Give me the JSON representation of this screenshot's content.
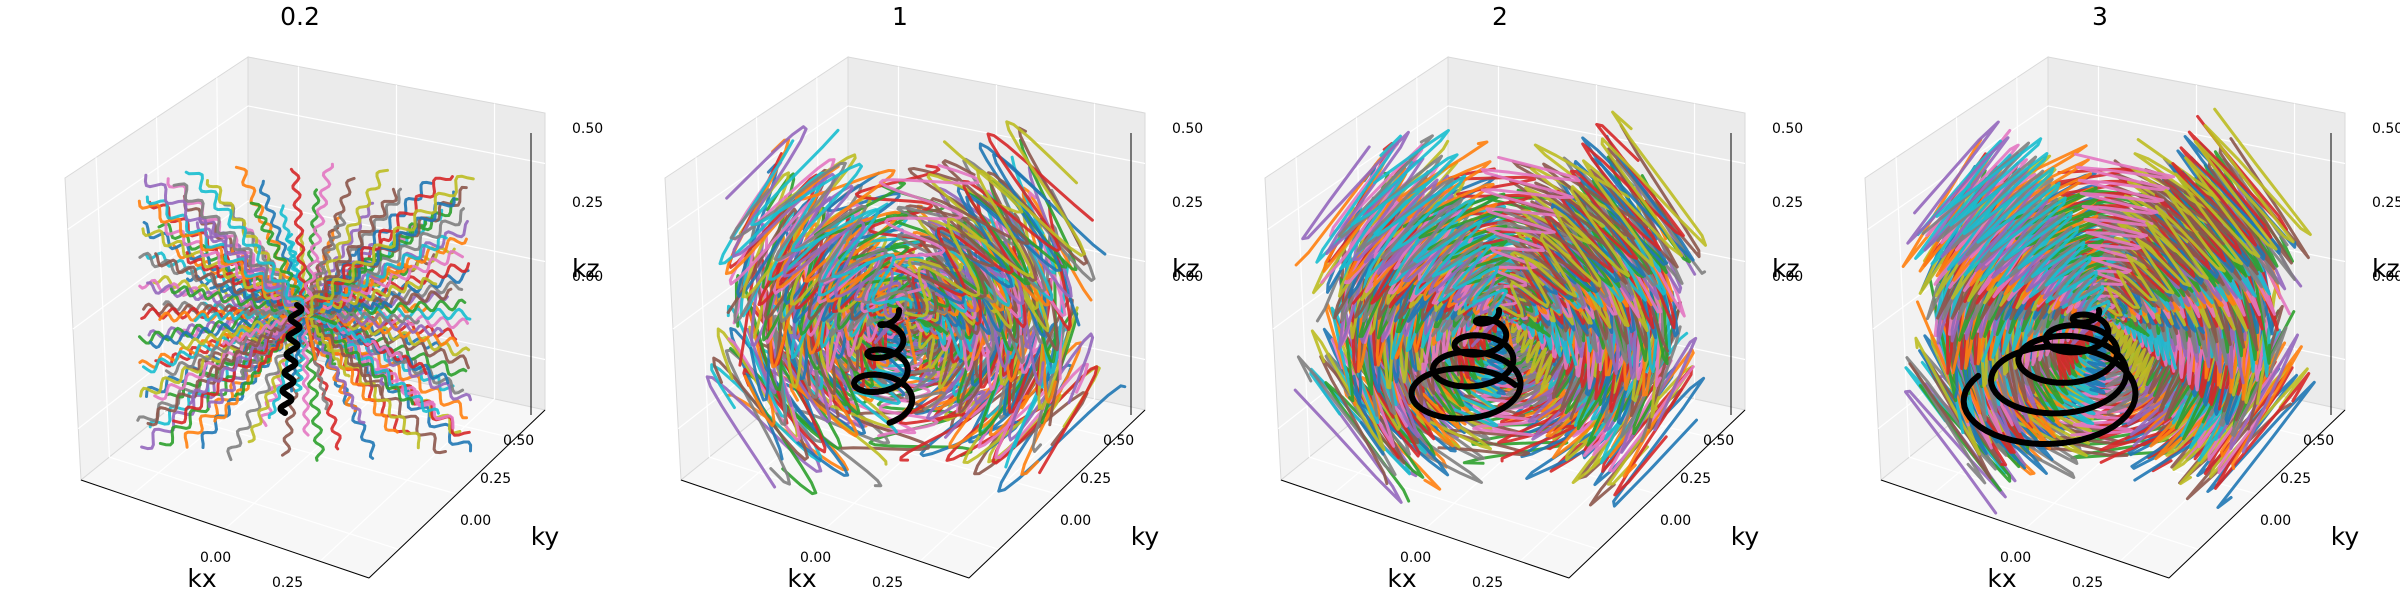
{
  "chart_data": [
    {
      "type": "line",
      "projection": "3d",
      "title": "0.2",
      "xlabel": "kx",
      "ylabel": "ky",
      "zlabel": "kz",
      "xticks": [
        "0.00",
        "0.25"
      ],
      "yticks": [
        "0.00",
        "0.25",
        "0.50"
      ],
      "zticks": [
        "0.00",
        "0.25",
        "0.50"
      ],
      "xlim": [
        -0.5,
        0.5
      ],
      "ylim": [
        -0.5,
        0.5
      ],
      "zlim": [
        -0.5,
        0.5
      ],
      "grid": true,
      "trajectory_count": 180,
      "k_radius": 0.5,
      "twist_turns": 0.2,
      "highlighted_trajectory": {
        "color": "#000000"
      }
    },
    {
      "type": "line",
      "projection": "3d",
      "title": "1",
      "xlabel": "kx",
      "ylabel": "ky",
      "zlabel": "kz",
      "xticks": [
        "0.00",
        "0.25"
      ],
      "yticks": [
        "0.00",
        "0.25",
        "0.50"
      ],
      "zticks": [
        "0.00",
        "0.25",
        "0.50"
      ],
      "xlim": [
        -0.5,
        0.5
      ],
      "ylim": [
        -0.5,
        0.5
      ],
      "zlim": [
        -0.5,
        0.5
      ],
      "grid": true,
      "trajectory_count": 180,
      "k_radius": 0.5,
      "twist_turns": 1,
      "highlighted_trajectory": {
        "color": "#000000"
      }
    },
    {
      "type": "line",
      "projection": "3d",
      "title": "2",
      "xlabel": "kx",
      "ylabel": "ky",
      "zlabel": "kz",
      "xticks": [
        "0.00",
        "0.25"
      ],
      "yticks": [
        "0.00",
        "0.25",
        "0.50"
      ],
      "zticks": [
        "0.00",
        "0.25",
        "0.50"
      ],
      "xlim": [
        -0.5,
        0.5
      ],
      "ylim": [
        -0.5,
        0.5
      ],
      "zlim": [
        -0.5,
        0.5
      ],
      "grid": true,
      "trajectory_count": 180,
      "k_radius": 0.5,
      "twist_turns": 2,
      "highlighted_trajectory": {
        "color": "#000000"
      }
    },
    {
      "type": "line",
      "projection": "3d",
      "title": "3",
      "xlabel": "kx",
      "ylabel": "ky",
      "zlabel": "kz",
      "xticks": [
        "0.00",
        "0.25"
      ],
      "yticks": [
        "0.00",
        "0.25",
        "0.50"
      ],
      "zticks": [
        "0.00",
        "0.25",
        "0.50"
      ],
      "xlim": [
        -0.5,
        0.5
      ],
      "ylim": [
        -0.5,
        0.5
      ],
      "zlim": [
        -0.5,
        0.5
      ],
      "grid": true,
      "trajectory_count": 180,
      "k_radius": 0.5,
      "twist_turns": 3,
      "highlighted_trajectory": {
        "color": "#000000"
      }
    }
  ],
  "palette": [
    "#1f77b4",
    "#ff7f0e",
    "#2ca02c",
    "#d62728",
    "#9467bd",
    "#8c564b",
    "#e377c2",
    "#7f7f7f",
    "#bcbd22",
    "#17becf"
  ]
}
